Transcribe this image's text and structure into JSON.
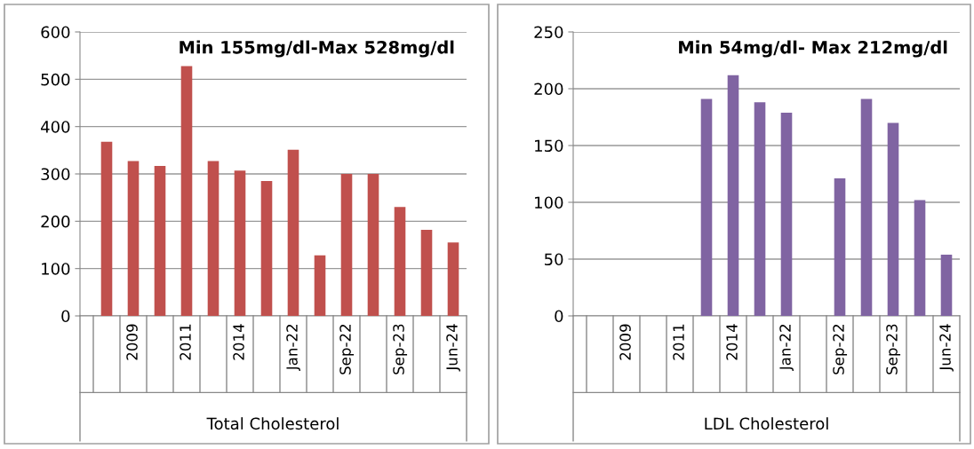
{
  "chart_data": [
    {
      "type": "bar",
      "title": "Min 155mg/dl-Max 528mg/dl",
      "xlabel": "Total Cholesterol",
      "categories": [
        null,
        "2009",
        null,
        "2011",
        null,
        "2014",
        null,
        "Jan-22",
        null,
        "Sep-22",
        null,
        "Sep-23",
        null,
        "Jun-24"
      ],
      "series": [
        {
          "color": "#c0504d",
          "values": [
            368,
            327,
            317,
            528,
            327,
            307,
            285,
            351,
            128,
            300,
            300,
            230,
            182,
            155
          ]
        }
      ],
      "ylim": [
        0,
        600
      ],
      "yticks": [
        0,
        100,
        200,
        300,
        400,
        500,
        600
      ],
      "grid": "y"
    },
    {
      "type": "bar",
      "title": "Min 54mg/dl- Max 212mg/dl",
      "xlabel": "LDL Cholesterol",
      "categories": [
        null,
        "2009",
        null,
        "2011",
        null,
        "2014",
        null,
        "Jan-22",
        null,
        "Sep-22",
        null,
        "Sep-23",
        null,
        "Jun-24"
      ],
      "series": [
        {
          "color": "#8064a2",
          "values": [
            null,
            null,
            null,
            null,
            191,
            212,
            188,
            179,
            null,
            121,
            191,
            170,
            102,
            54
          ]
        }
      ],
      "ylim": [
        0,
        250
      ],
      "yticks": [
        0,
        50,
        100,
        150,
        200,
        250
      ],
      "grid": "y"
    }
  ]
}
